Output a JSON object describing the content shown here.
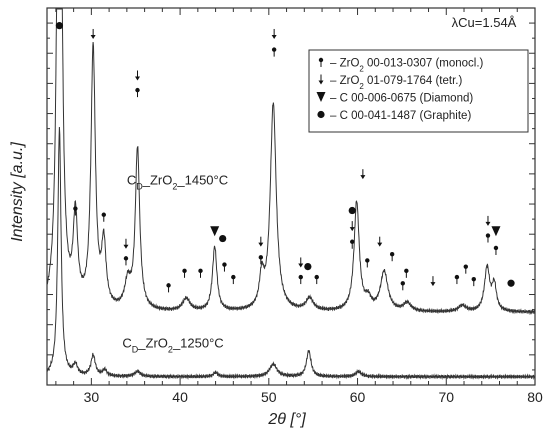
{
  "chart_data": {
    "type": "line",
    "xlabel": "2θ [°]",
    "ylabel": "Intensity [a.u.]",
    "xlim": [
      25,
      80
    ],
    "xticks": [
      30,
      40,
      50,
      60,
      70,
      80
    ],
    "yticks_labeled": false,
    "wavelength_label": "λCu=1.54Å",
    "grid": false,
    "legend_position": "top-right",
    "legend": [
      {
        "marker": "pin",
        "label": "– ZrO2 00-013-0307 (monocl.)"
      },
      {
        "marker": "arrow",
        "label": "– ZrO2 01-079-1764 (tetr.)"
      },
      {
        "marker": "triangle",
        "label": "– C 00-006-0675 (Diamond)"
      },
      {
        "marker": "dot",
        "label": "– C 00-041-1487 (Graphite)"
      }
    ],
    "series": [
      {
        "name": "CD_ZrO2_1450°C",
        "baseline": 0.62,
        "peaks": [
          {
            "x": 26.4,
            "h": 8.0,
            "w": 0.25
          },
          {
            "x": 28.2,
            "h": 0.85,
            "w": 0.3
          },
          {
            "x": 30.2,
            "h": 2.5,
            "w": 0.3
          },
          {
            "x": 31.4,
            "h": 0.6,
            "w": 0.3
          },
          {
            "x": 34.1,
            "h": 0.25,
            "w": 0.4
          },
          {
            "x": 35.2,
            "h": 1.55,
            "w": 0.3
          },
          {
            "x": 40.7,
            "h": 0.12,
            "w": 0.5
          },
          {
            "x": 43.9,
            "h": 0.62,
            "w": 0.3
          },
          {
            "x": 49.2,
            "h": 0.3,
            "w": 0.3
          },
          {
            "x": 50.5,
            "h": 2.0,
            "w": 0.4
          },
          {
            "x": 54.6,
            "h": 0.12,
            "w": 0.5
          },
          {
            "x": 59.9,
            "h": 1.05,
            "w": 0.35
          },
          {
            "x": 61.2,
            "h": 0.1,
            "w": 0.4
          },
          {
            "x": 63.0,
            "h": 0.38,
            "w": 0.5
          },
          {
            "x": 65.6,
            "h": 0.08,
            "w": 0.5
          },
          {
            "x": 71.8,
            "h": 0.06,
            "w": 0.5
          },
          {
            "x": 74.6,
            "h": 0.42,
            "w": 0.35
          },
          {
            "x": 75.4,
            "h": 0.25,
            "w": 0.3
          }
        ]
      },
      {
        "name": "CD_ZrO2_1250°C",
        "baseline": 0.0,
        "peaks": [
          {
            "x": 26.4,
            "h": 2.4,
            "w": 0.22
          },
          {
            "x": 28.2,
            "h": 0.1,
            "w": 0.3
          },
          {
            "x": 30.2,
            "h": 0.2,
            "w": 0.3
          },
          {
            "x": 31.5,
            "h": 0.06,
            "w": 0.3
          },
          {
            "x": 35.2,
            "h": 0.05,
            "w": 0.4
          },
          {
            "x": 44.0,
            "h": 0.04,
            "w": 0.3
          },
          {
            "x": 50.5,
            "h": 0.12,
            "w": 0.5
          },
          {
            "x": 54.5,
            "h": 0.25,
            "w": 0.3
          },
          {
            "x": 60.1,
            "h": 0.05,
            "w": 0.4
          }
        ]
      }
    ],
    "series_labels": [
      {
        "text": "CD_ZrO2_1450°C",
        "x": 34.0,
        "y": 1.85
      },
      {
        "text": "CD_ZrO2_1250°C",
        "x": 33.5,
        "y": 0.28
      }
    ],
    "phase_markers": [
      {
        "type": "dot",
        "x": 26.4,
        "y": 3.38
      },
      {
        "type": "arrow",
        "x": 30.2,
        "y": 3.3
      },
      {
        "type": "arrow",
        "x": 35.2,
        "y": 2.9
      },
      {
        "type": "pin",
        "x": 35.2,
        "y": 2.74
      },
      {
        "type": "pin",
        "x": 28.2,
        "y": 1.6
      },
      {
        "type": "pin",
        "x": 31.4,
        "y": 1.54
      },
      {
        "type": "arrow",
        "x": 33.9,
        "y": 1.28
      },
      {
        "type": "pin",
        "x": 33.9,
        "y": 1.12
      },
      {
        "type": "pin",
        "x": 38.7,
        "y": 0.86
      },
      {
        "type": "pin",
        "x": 40.5,
        "y": 1.0
      },
      {
        "type": "pin",
        "x": 42.3,
        "y": 1.0
      },
      {
        "type": "triangle",
        "x": 43.9,
        "y": 1.4
      },
      {
        "type": "dot",
        "x": 44.8,
        "y": 1.33
      },
      {
        "type": "pin",
        "x": 45.0,
        "y": 1.06
      },
      {
        "type": "pin",
        "x": 46.0,
        "y": 0.94
      },
      {
        "type": "arrow",
        "x": 49.1,
        "y": 1.3
      },
      {
        "type": "pin",
        "x": 49.1,
        "y": 1.13
      },
      {
        "type": "arrow",
        "x": 50.6,
        "y": 3.3
      },
      {
        "type": "pin",
        "x": 50.6,
        "y": 3.13
      },
      {
        "type": "arrow",
        "x": 53.6,
        "y": 1.1
      },
      {
        "type": "pin",
        "x": 53.6,
        "y": 0.94
      },
      {
        "type": "dot",
        "x": 54.4,
        "y": 1.06
      },
      {
        "type": "pin",
        "x": 55.4,
        "y": 0.94
      },
      {
        "type": "dot",
        "x": 59.4,
        "y": 1.6
      },
      {
        "type": "arrow",
        "x": 59.4,
        "y": 1.45
      },
      {
        "type": "pin",
        "x": 59.4,
        "y": 1.28
      },
      {
        "type": "arrow",
        "x": 60.6,
        "y": 1.95
      },
      {
        "type": "pin",
        "x": 61.1,
        "y": 1.1
      },
      {
        "type": "arrow",
        "x": 62.5,
        "y": 1.3
      },
      {
        "type": "pin",
        "x": 63.9,
        "y": 1.16
      },
      {
        "type": "pin",
        "x": 65.5,
        "y": 1.0
      },
      {
        "type": "pin",
        "x": 65.1,
        "y": 0.88
      },
      {
        "type": "arrow",
        "x": 68.5,
        "y": 0.92
      },
      {
        "type": "pin",
        "x": 71.2,
        "y": 0.94
      },
      {
        "type": "pin",
        "x": 72.2,
        "y": 1.04
      },
      {
        "type": "pin",
        "x": 73.1,
        "y": 0.92
      },
      {
        "type": "arrow",
        "x": 74.7,
        "y": 1.5
      },
      {
        "type": "pin",
        "x": 74.7,
        "y": 1.34
      },
      {
        "type": "triangle",
        "x": 75.6,
        "y": 1.4
      },
      {
        "type": "pin",
        "x": 75.6,
        "y": 1.22
      },
      {
        "type": "dot",
        "x": 77.3,
        "y": 0.9
      }
    ]
  }
}
